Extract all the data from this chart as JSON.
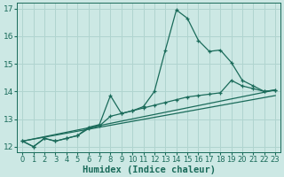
{
  "title": "",
  "xlabel": "Humidex (Indice chaleur)",
  "ylabel": "",
  "bg_color": "#cce8e4",
  "grid_color": "#b0d4cf",
  "line_color": "#1a6b5a",
  "xlim": [
    -0.5,
    23.5
  ],
  "ylim": [
    11.8,
    17.2
  ],
  "yticks": [
    12,
    13,
    14,
    15,
    16,
    17
  ],
  "xticks": [
    0,
    1,
    2,
    3,
    4,
    5,
    6,
    7,
    8,
    9,
    10,
    11,
    12,
    13,
    14,
    15,
    16,
    17,
    18,
    19,
    20,
    21,
    22,
    23
  ],
  "series": [
    {
      "x": [
        0,
        1,
        2,
        3,
        4,
        5,
        6,
        7,
        8,
        9,
        10,
        11,
        12,
        13,
        14,
        15,
        16,
        17,
        18,
        19,
        20,
        21,
        22,
        23
      ],
      "y": [
        12.2,
        12.0,
        12.3,
        12.2,
        12.3,
        12.4,
        12.7,
        12.8,
        13.85,
        13.2,
        13.3,
        13.45,
        14.0,
        15.5,
        16.95,
        16.65,
        15.85,
        15.45,
        15.5,
        15.05,
        14.4,
        14.2,
        14.0,
        14.05
      ],
      "has_markers": true
    },
    {
      "x": [
        0,
        1,
        2,
        3,
        4,
        5,
        6,
        7,
        8,
        9,
        10,
        11,
        12,
        13,
        14,
        15,
        16,
        17,
        18,
        19,
        20,
        21,
        22,
        23
      ],
      "y": [
        12.2,
        12.0,
        12.3,
        12.2,
        12.3,
        12.4,
        12.65,
        12.75,
        13.1,
        13.2,
        13.3,
        13.4,
        13.5,
        13.6,
        13.7,
        13.8,
        13.85,
        13.9,
        13.95,
        14.4,
        14.2,
        14.1,
        14.0,
        14.05
      ],
      "has_markers": true
    },
    {
      "x": [
        0,
        23
      ],
      "y": [
        12.2,
        14.05
      ],
      "has_markers": false
    },
    {
      "x": [
        0,
        23
      ],
      "y": [
        12.2,
        13.85
      ],
      "has_markers": false
    }
  ],
  "marker": "+",
  "markersize": 3.5,
  "markeredgewidth": 0.9,
  "linewidth": 0.9,
  "xlabel_fontsize": 7.5,
  "xlabel_fontweight": "bold",
  "tick_fontsize": 6.0
}
